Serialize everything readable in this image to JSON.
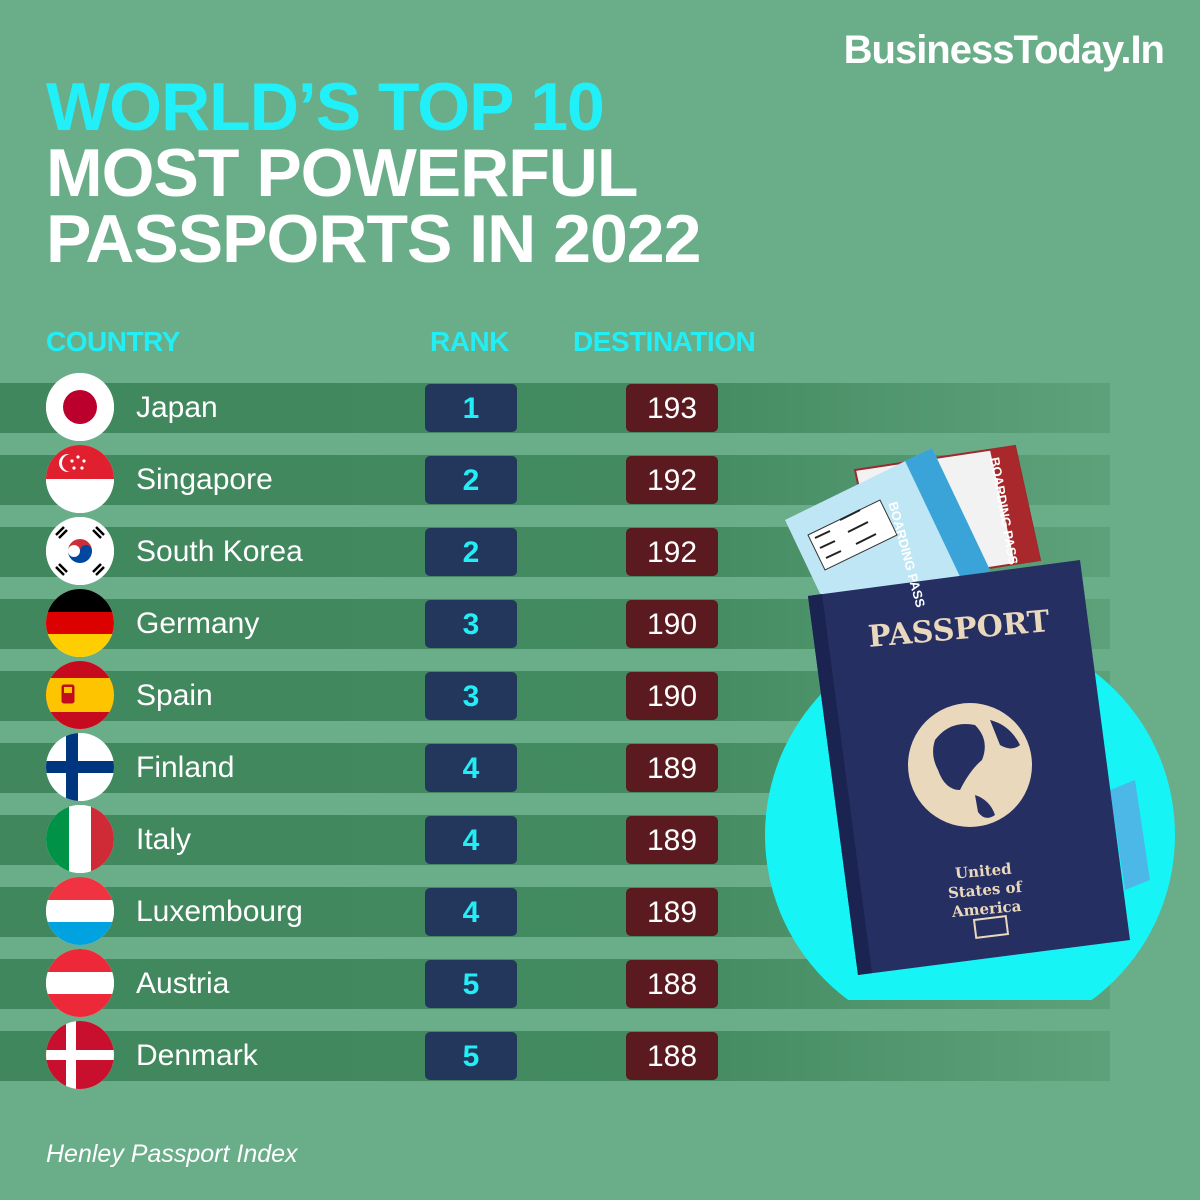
{
  "brand": "BusinessToday.In",
  "title": {
    "line1": "WORLD’S TOP 10",
    "line2": "MOST POWERFUL",
    "line3": "PASSPORTS IN 2022"
  },
  "colors": {
    "background": "#6aad89",
    "accent_cyan": "#22f0f8",
    "rank_box": "#23365c",
    "destination_box": "#5b1a1f",
    "row_band": "#40875d"
  },
  "chart_data": {
    "type": "table",
    "columns": [
      "COUNTRY",
      "RANK",
      "DESTINATION"
    ],
    "rows": [
      {
        "country": "Japan",
        "rank": "1",
        "destination": "193",
        "flag": "japan-flag-icon"
      },
      {
        "country": "Singapore",
        "rank": "2",
        "destination": "192",
        "flag": "singapore-flag-icon"
      },
      {
        "country": "South Korea",
        "rank": "2",
        "destination": "192",
        "flag": "south-korea-flag-icon"
      },
      {
        "country": "Germany",
        "rank": "3",
        "destination": "190",
        "flag": "germany-flag-icon"
      },
      {
        "country": "Spain",
        "rank": "3",
        "destination": "190",
        "flag": "spain-flag-icon"
      },
      {
        "country": "Finland",
        "rank": "4",
        "destination": "189",
        "flag": "finland-flag-icon"
      },
      {
        "country": "Italy",
        "rank": "4",
        "destination": "189",
        "flag": "italy-flag-icon"
      },
      {
        "country": "Luxembourg",
        "rank": "4",
        "destination": "189",
        "flag": "luxembourg-flag-icon"
      },
      {
        "country": "Austria",
        "rank": "5",
        "destination": "188",
        "flag": "austria-flag-icon"
      },
      {
        "country": "Denmark",
        "rank": "5",
        "destination": "188",
        "flag": "denmark-flag-icon"
      }
    ]
  },
  "illustration": {
    "passport_title": "PASSPORT",
    "passport_country": "United States of America",
    "boarding_pass_label": "BOARDING PASS",
    "icon": "passport-with-boarding-passes-icon"
  },
  "source": "Henley Passport Index"
}
